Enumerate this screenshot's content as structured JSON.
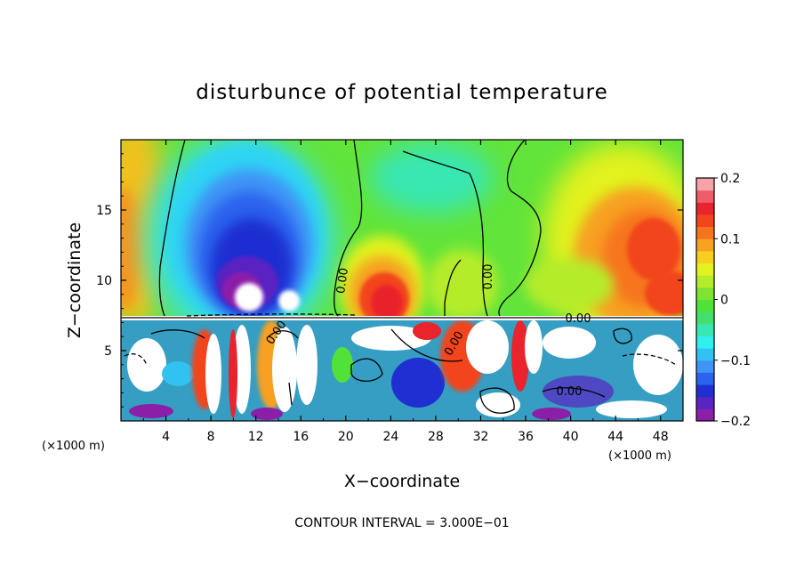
{
  "chart_data": {
    "type": "heatmap",
    "title": "disturbunce of potential temperature",
    "xlabel": "X−coordinate",
    "ylabel": "Z−coordinate",
    "x_unit_left": "(×1000 m)",
    "x_unit_right": "(×1000 m)",
    "xlim": [
      0,
      50
    ],
    "ylim": [
      0,
      20
    ],
    "x_ticks": [
      4,
      8,
      12,
      16,
      20,
      24,
      28,
      32,
      36,
      40,
      44,
      48
    ],
    "y_ticks": [
      5,
      10,
      15
    ],
    "colorbar": {
      "range": [
        -0.2,
        0.2
      ],
      "tick_values": [
        0.2,
        0.1,
        0,
        -0.1,
        -0.2
      ],
      "tick_labels": [
        "0.2",
        "0.1",
        "0",
        "−0.1",
        "−0.2"
      ],
      "colors": [
        "#8b1fa8",
        "#5a24c2",
        "#1f2fd1",
        "#2b63ee",
        "#3f94f6",
        "#32c2f2",
        "#2ff0ee",
        "#39e7b2",
        "#43e06e",
        "#51e23a",
        "#7ee332",
        "#b5ec2a",
        "#e2f21f",
        "#f7d01e",
        "#f8a320",
        "#f7741e",
        "#f2451c",
        "#e9242c",
        "#ef5d69",
        "#f5a3a8"
      ]
    },
    "contour_labels": [
      "0.00",
      "0.00",
      "0.00",
      "0.00",
      "0.00",
      "0.00"
    ],
    "contour_interval_text": "CONTOUR INTERVAL = 3.000E−01",
    "regions": [
      {
        "x": 12,
        "z": 14,
        "value": -0.09
      },
      {
        "x": 12,
        "z": 12.5,
        "value": -0.15
      },
      {
        "x": 11,
        "z": 11,
        "value": -0.19
      },
      {
        "x": 11.5,
        "z": 9.5,
        "value": -0.25
      },
      {
        "x": 42,
        "z": 14,
        "value": 0.05
      },
      {
        "x": 46.5,
        "z": 12,
        "value": 0.12
      },
      {
        "x": 25,
        "z": 10,
        "value": 0.1
      },
      {
        "x": 25,
        "z": 9,
        "value": 0.16
      },
      {
        "x": 2,
        "z": 13,
        "value": 0.07
      }
    ]
  }
}
